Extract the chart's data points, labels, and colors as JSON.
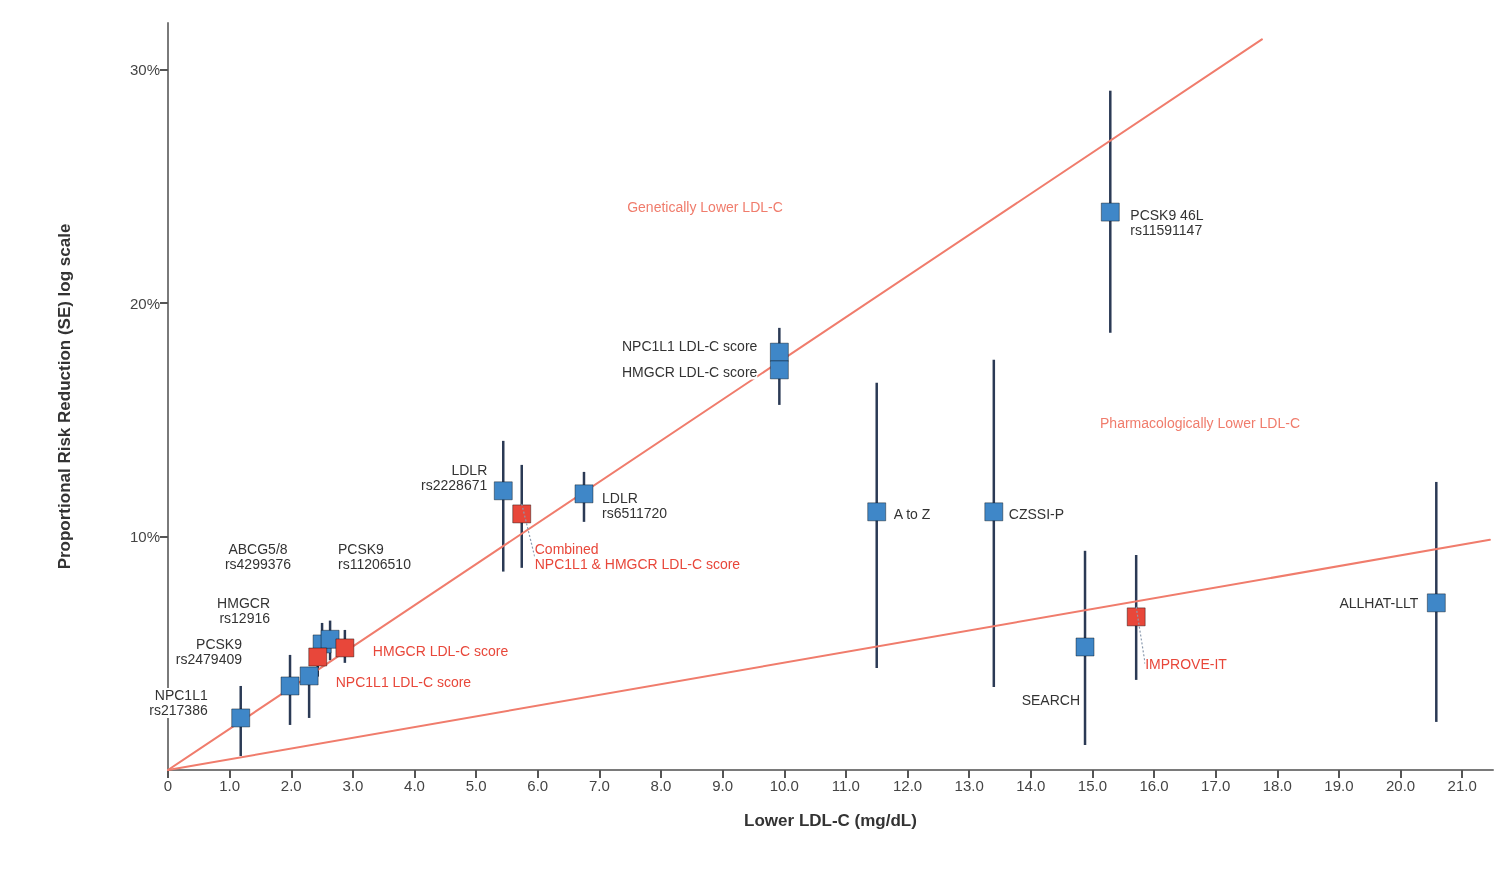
{
  "chart_data": {
    "type": "scatter",
    "xlabel": "Lower LDL-C (mg/dL)",
    "ylabel": "Proportional Risk Reduction (SE) log scale",
    "xlim": [
      0,
      21.5
    ],
    "ylim": [
      0,
      32
    ],
    "xticks": [
      0,
      {
        "value": 1,
        "label": "1.0"
      },
      {
        "value": 2,
        "label": "2.0"
      },
      {
        "value": 3,
        "label": "3.0"
      },
      {
        "value": 4,
        "label": "4.0"
      },
      {
        "value": 5,
        "label": "5.0"
      },
      {
        "value": 6,
        "label": "6.0"
      },
      {
        "value": 7,
        "label": "7.0"
      },
      {
        "value": 8,
        "label": "8.0"
      },
      {
        "value": 9,
        "label": "9.0"
      },
      {
        "value": 10,
        "label": "10.0"
      },
      {
        "value": 11,
        "label": "11.0"
      },
      {
        "value": 12,
        "label": "12.0"
      },
      {
        "value": 13,
        "label": "13.0"
      },
      {
        "value": 14,
        "label": "14.0"
      },
      {
        "value": 15,
        "label": "15.0"
      },
      {
        "value": 16,
        "label": "16.0"
      },
      {
        "value": 17,
        "label": "17.0"
      },
      {
        "value": 18,
        "label": "18.0"
      },
      {
        "value": 19,
        "label": "19.0"
      },
      {
        "value": 20,
        "label": "20.0"
      },
      {
        "value": 21,
        "label": "21.0"
      }
    ],
    "yticks": [
      {
        "value": 10,
        "label": "10%"
      },
      {
        "value": 20,
        "label": "20%"
      },
      {
        "value": 30,
        "label": "30%"
      }
    ],
    "grid": false,
    "marker": "square",
    "series": [
      {
        "type": "line",
        "color": "#f07c6c",
        "marker": "none",
        "x": [
          0,
          17.75
        ],
        "values": [
          0,
          31.3
        ]
      },
      {
        "type": "line",
        "color": "#f07c6c",
        "marker": "none",
        "x": [
          0,
          21.45
        ],
        "values": [
          0,
          9.86
        ]
      },
      {
        "color": "#3f87c8",
        "x": [
          1.18,
          1.98,
          2.29,
          2.5,
          2.63,
          5.44,
          6.75,
          9.92,
          9.92,
          15.29,
          11.5,
          13.4,
          14.88,
          20.58
        ],
        "values": [
          2.23,
          3.6,
          4.03,
          5.4,
          5.6,
          11.96,
          11.83,
          17.9,
          17.14,
          23.9,
          11.06,
          11.06,
          5.27,
          7.16
        ],
        "errors": [
          [
            0.6,
            3.6
          ],
          [
            1.93,
            4.93
          ],
          [
            2.23,
            4.03
          ],
          [
            5.4,
            6.3
          ],
          [
            4.7,
            6.4
          ],
          [
            8.5,
            14.1
          ],
          [
            10.63,
            12.77
          ],
          [
            17.9,
            18.94
          ],
          [
            15.64,
            17.14
          ],
          [
            18.73,
            29.1
          ],
          [
            4.37,
            16.59
          ],
          [
            3.56,
            17.57
          ],
          [
            1.07,
            9.39
          ],
          [
            2.06,
            12.34
          ]
        ]
      },
      {
        "color": "#e8473a",
        "x": [
          2.43,
          2.87,
          5.74,
          15.71
        ],
        "values": [
          4.84,
          5.23,
          10.97,
          6.56
        ],
        "errors": [
          [
            4.0,
            5.7
          ],
          [
            4.59,
            6.0
          ],
          [
            8.66,
            13.07
          ],
          [
            3.86,
            9.21
          ]
        ]
      }
    ],
    "annotations": [
      "Genetically Lower LDL-C",
      "Pharmacologically Lower LDL-C",
      {
        "text": "PCSK9 46L\nrs11591147",
        "x": 15.29,
        "y": 23.9
      },
      {
        "text": "NPC1L1 LDL-C score",
        "x": 9.92,
        "y": 17.9
      },
      {
        "text": "HMGCR LDL-C score",
        "x": 9.92,
        "y": 17.14
      },
      {
        "text": "LDLR\nrs2228671",
        "x": 5.44,
        "y": 11.96
      },
      {
        "text": "LDLR\nrs6511720",
        "x": 6.75,
        "y": 11.83
      },
      {
        "text": "Combined\nNPC1L1 & HMGCR LDL-C score",
        "x": 5.74,
        "y": 10.97
      },
      {
        "text": "A to Z",
        "x": 11.5,
        "y": 11.06
      },
      {
        "text": "CZSSI-P",
        "x": 13.4,
        "y": 11.06
      },
      "SEARCH",
      {
        "text": "IMPROVE-IT",
        "x": 15.71,
        "y": 6.56
      },
      {
        "text": "ALLHAT-LLT",
        "x": 20.58,
        "y": 7.16
      },
      "ABCG5/8\nrs4299376",
      "PCSK9\nrs11206510",
      "HMGCR\nrs12916",
      "PCSK9\nrs2479409",
      {
        "text": "NPC1L1\nrs217386",
        "x": 1.18,
        "y": 2.23
      },
      {
        "text": "HMGCR LDL-C score",
        "x": 2.87,
        "y": 5.23
      },
      {
        "text": "NPC1L1 LDL-C score",
        "x": 2.43,
        "y": 4.84
      }
    ]
  }
}
